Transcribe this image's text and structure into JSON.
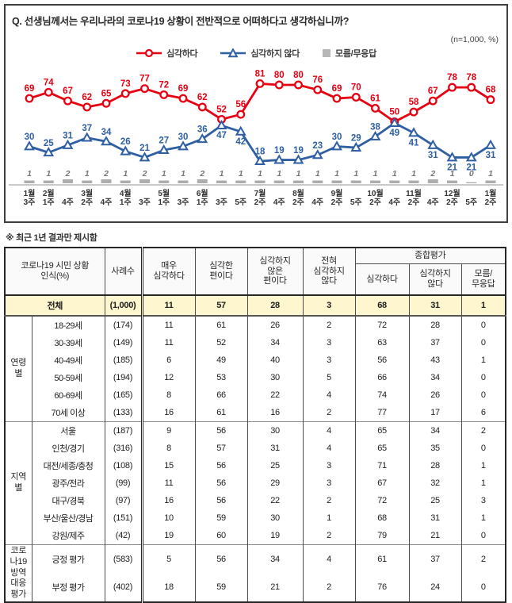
{
  "header": {
    "question": "Q. 선생님께서는 우리나라의 코로나19 상황이 전반적으로 어떠하다고 생각하십니까?",
    "sample_note": "(n=1,000, %)"
  },
  "chart_data": {
    "type": "line",
    "title": "코로나19 상황 인식 추이",
    "x": [
      {
        "month": "1월",
        "week": "3주"
      },
      {
        "month": "2월",
        "week": "1주"
      },
      {
        "month": "",
        "week": "4주"
      },
      {
        "month": "3월",
        "week": "2주"
      },
      {
        "month": "",
        "week": "4주"
      },
      {
        "month": "4월",
        "week": "1주"
      },
      {
        "month": "",
        "week": "3주"
      },
      {
        "month": "5월",
        "week": "1주"
      },
      {
        "month": "",
        "week": "3주"
      },
      {
        "month": "6월",
        "week": "1주"
      },
      {
        "month": "",
        "week": "3주"
      },
      {
        "month": "",
        "week": "5주"
      },
      {
        "month": "7월",
        "week": "2주"
      },
      {
        "month": "",
        "week": "4주"
      },
      {
        "month": "8월",
        "week": "2주"
      },
      {
        "month": "",
        "week": "4주"
      },
      {
        "month": "9월",
        "week": "2주"
      },
      {
        "month": "",
        "week": "5주"
      },
      {
        "month": "10월",
        "week": "2주"
      },
      {
        "month": "",
        "week": "4주"
      },
      {
        "month": "11월",
        "week": "2주"
      },
      {
        "month": "",
        "week": "4주"
      },
      {
        "month": "12월",
        "week": "2주"
      },
      {
        "month": "",
        "week": "5주"
      },
      {
        "month": "1월",
        "week": "2주"
      }
    ],
    "series": [
      {
        "name": "심각하다",
        "marker": "circle",
        "color": "#e60012",
        "values": [
          69,
          74,
          67,
          62,
          65,
          73,
          77,
          72,
          69,
          62,
          52,
          56,
          81,
          80,
          80,
          76,
          69,
          70,
          61,
          50,
          58,
          67,
          78,
          78,
          68
        ]
      },
      {
        "name": "심각하지 않다",
        "marker": "triangle",
        "color": "#2e5fa3",
        "values": [
          30,
          25,
          31,
          37,
          34,
          26,
          21,
          27,
          30,
          36,
          47,
          42,
          18,
          19,
          19,
          23,
          30,
          29,
          38,
          49,
          41,
          31,
          21,
          21,
          31
        ]
      },
      {
        "name": "모름/무응답",
        "marker": "square",
        "color": "#b3b3b3",
        "values": [
          1,
          1,
          2,
          1,
          2,
          1,
          2,
          1,
          1,
          2,
          1,
          1,
          1,
          1,
          1,
          1,
          1,
          1,
          1,
          1,
          1,
          2,
          1,
          0,
          1
        ]
      }
    ],
    "ylim": [
      0,
      90
    ],
    "grid": false,
    "legend_position": "top",
    "blue_label_below": [
      10,
      11,
      19,
      20,
      21,
      22,
      23,
      24
    ]
  },
  "table_note": "※ 최근 1년 결과만 제시함",
  "table": {
    "header": {
      "col1": "코로나19 시민 상황\n인식(%)",
      "cases": "사례수",
      "cols": [
        "매우\n심각하다",
        "심각한\n편이다",
        "심각하지\n않은\n편이다",
        "전혀\n심각하지\n않다"
      ],
      "summary_title": "종합평가",
      "summary_cols": [
        "심각하다",
        "심각하지\n않다",
        "모름/\n무응답"
      ]
    },
    "total_row": {
      "label": "전체",
      "cases": "(1,000)",
      "values": [
        11,
        57,
        28,
        3,
        68,
        31,
        1
      ]
    },
    "groups": [
      {
        "name": "연령별",
        "rows": [
          {
            "label": "18-29세",
            "cases": "(174)",
            "values": [
              11,
              61,
              26,
              2,
              72,
              28,
              0
            ]
          },
          {
            "label": "30-39세",
            "cases": "(149)",
            "values": [
              11,
              52,
              34,
              3,
              63,
              37,
              0
            ]
          },
          {
            "label": "40-49세",
            "cases": "(185)",
            "values": [
              6,
              49,
              40,
              3,
              56,
              43,
              1
            ]
          },
          {
            "label": "50-59세",
            "cases": "(194)",
            "values": [
              12,
              53,
              30,
              5,
              66,
              34,
              0
            ]
          },
          {
            "label": "60-69세",
            "cases": "(165)",
            "values": [
              8,
              66,
              22,
              4,
              74,
              26,
              0
            ]
          },
          {
            "label": "70세 이상",
            "cases": "(133)",
            "values": [
              16,
              61,
              16,
              2,
              77,
              17,
              6
            ]
          }
        ]
      },
      {
        "name": "지역별",
        "rows": [
          {
            "label": "서울",
            "cases": "(187)",
            "values": [
              9,
              56,
              30,
              4,
              65,
              34,
              2
            ]
          },
          {
            "label": "인천/경기",
            "cases": "(316)",
            "values": [
              8,
              57,
              31,
              4,
              65,
              35,
              0
            ]
          },
          {
            "label": "대전/세종/충청",
            "cases": "(108)",
            "values": [
              15,
              56,
              25,
              3,
              71,
              28,
              1
            ]
          },
          {
            "label": "광주/전라",
            "cases": "(99)",
            "values": [
              11,
              56,
              29,
              3,
              67,
              32,
              1
            ]
          },
          {
            "label": "대구/경북",
            "cases": "(97)",
            "values": [
              16,
              56,
              22,
              2,
              72,
              25,
              3
            ]
          },
          {
            "label": "부산/울산/경남",
            "cases": "(151)",
            "values": [
              10,
              59,
              30,
              1,
              68,
              31,
              1
            ]
          },
          {
            "label": "강원/제주",
            "cases": "(42)",
            "values": [
              19,
              60,
              19,
              2,
              79,
              21,
              0
            ]
          }
        ]
      },
      {
        "name": "코로나19\n방역\n대응평가",
        "rows": [
          {
            "label": "긍정 평가",
            "cases": "(583)",
            "values": [
              5,
              56,
              34,
              4,
              61,
              37,
              2
            ]
          },
          {
            "label": "부정 평가",
            "cases": "(402)",
            "values": [
              18,
              59,
              21,
              2,
              76,
              24,
              0
            ]
          }
        ]
      }
    ]
  }
}
